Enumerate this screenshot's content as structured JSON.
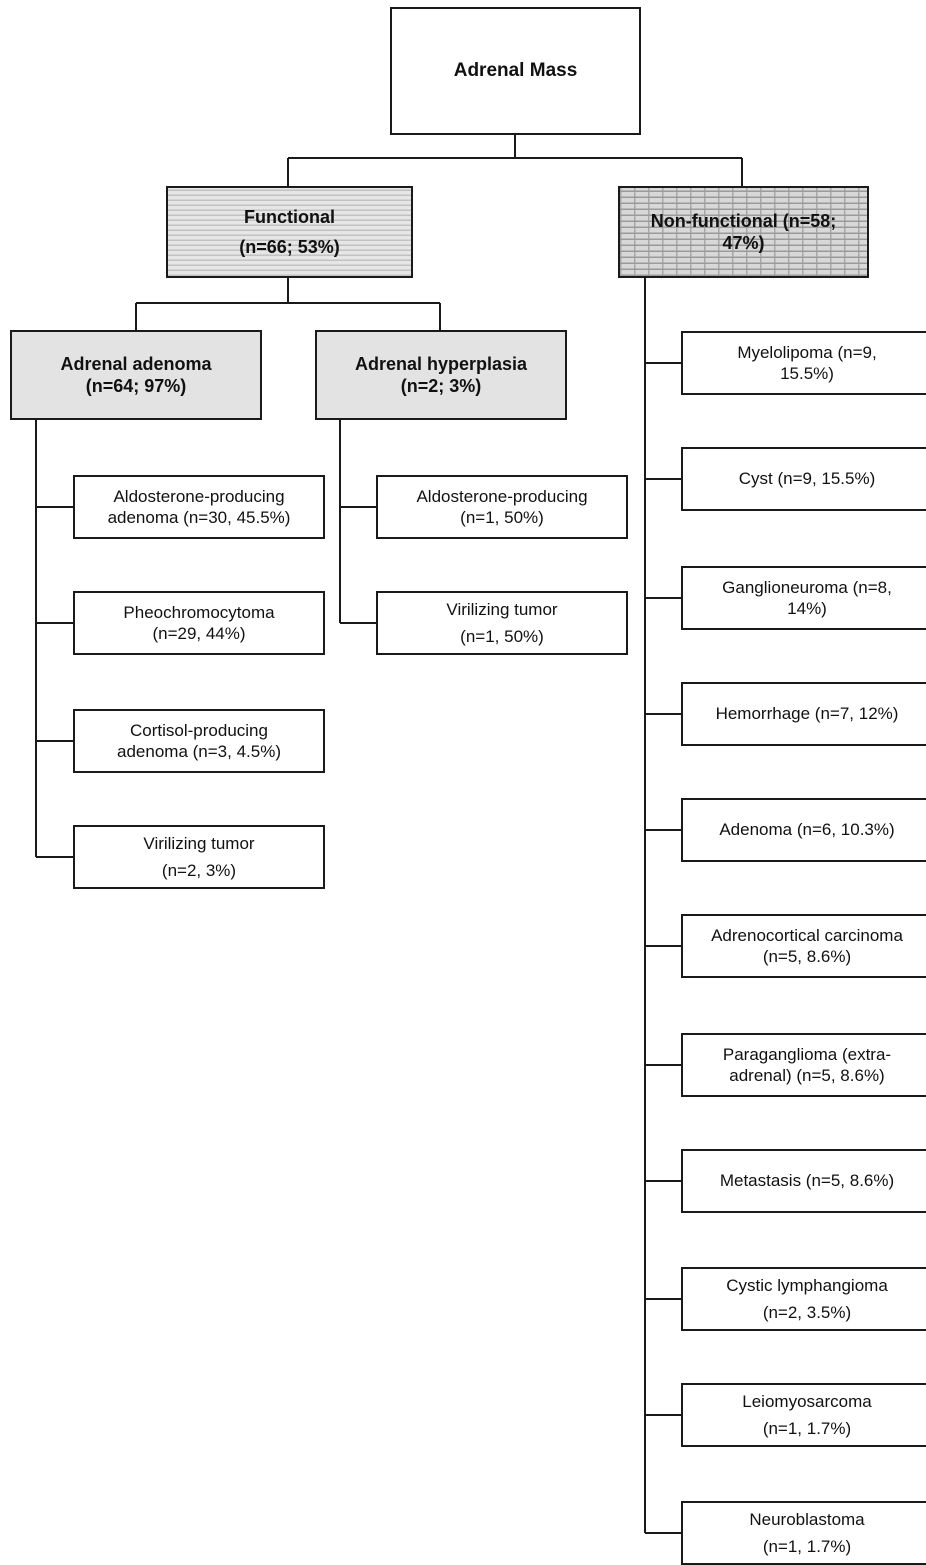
{
  "root": {
    "title": "Adrenal Mass"
  },
  "functional": {
    "line1": "Functional",
    "line2": "(n=66; 53%)"
  },
  "nonfunctional": {
    "line1": "Non-functional (n=58;",
    "line2": "47%)"
  },
  "adenoma": {
    "line1": "Adrenal adenoma",
    "line2": "(n=64; 97%)"
  },
  "hyperplasia": {
    "line1": "Adrenal hyperplasia",
    "line2": "(n=2; 3%)"
  },
  "adenoma_items": [
    {
      "line1": "Aldosterone-producing",
      "line2": "adenoma (n=30, 45.5%)"
    },
    {
      "line1": "Pheochromocytoma",
      "line2": "(n=29, 44%)"
    },
    {
      "line1": "Cortisol-producing",
      "line2": "adenoma (n=3, 4.5%)"
    },
    {
      "line1": "Virilizing tumor",
      "line2": "(n=2, 3%)"
    }
  ],
  "hyperplasia_items": [
    {
      "line1": "Aldosterone-producing",
      "line2": "(n=1, 50%)"
    },
    {
      "line1": "Virilizing tumor",
      "line2": "(n=1, 50%)"
    }
  ],
  "nonfunctional_items": [
    {
      "line1": "Myelolipoma (n=9,",
      "line2": "15.5%)"
    },
    {
      "line1": "Cyst (n=9, 15.5%)",
      "line2": ""
    },
    {
      "line1": "Ganglioneuroma (n=8,",
      "line2": "14%)"
    },
    {
      "line1": "Hemorrhage (n=7, 12%)",
      "line2": ""
    },
    {
      "line1": "Adenoma (n=6, 10.3%)",
      "line2": ""
    },
    {
      "line1": "Adrenocortical carcinoma",
      "line2": "(n=5, 8.6%)"
    },
    {
      "line1": "Paraganglioma (extra-",
      "line2": "adrenal) (n=5, 8.6%)"
    },
    {
      "line1": "Metastasis (n=5, 8.6%)",
      "line2": ""
    },
    {
      "line1": "Cystic lymphangioma",
      "line2": "(n=2, 3.5%)"
    },
    {
      "line1": "Leiomyosarcoma",
      "line2": "(n=1, 1.7%)"
    },
    {
      "line1": "Neuroblastoma",
      "line2": "(n=1, 1.7%)"
    }
  ]
}
